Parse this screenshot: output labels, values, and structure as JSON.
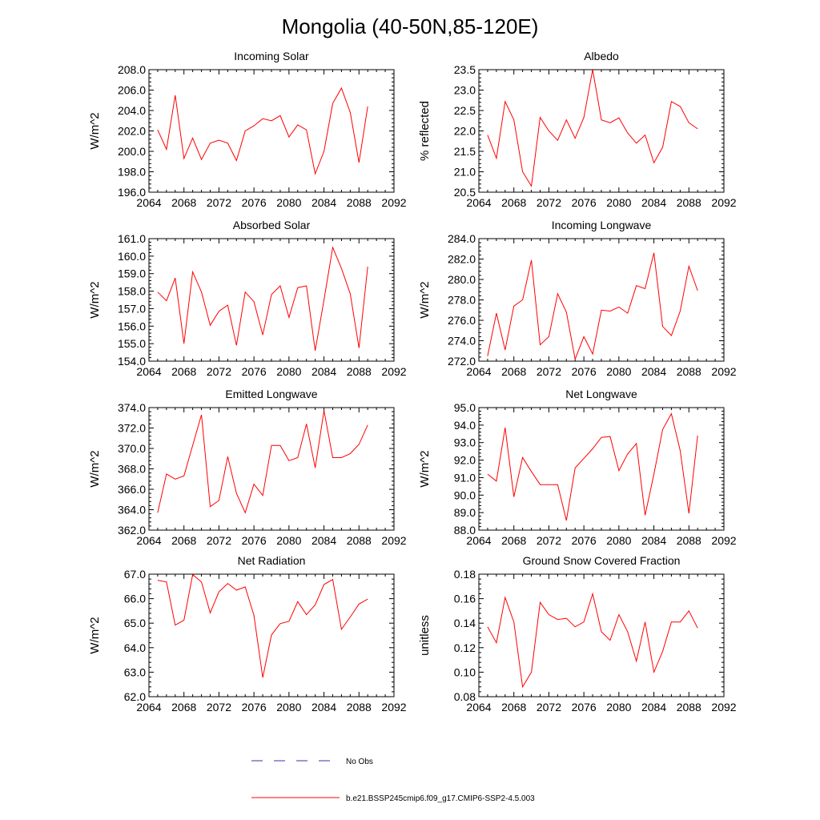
{
  "figure_title": "Mongolia (40-50N,85-120E)",
  "legend": {
    "items": [
      {
        "label": "No Obs",
        "color": "#3333aa",
        "style": "dashed"
      },
      {
        "label": "b.e21.BSSP245cmip6.f09_g17.CMIP6-SSP2-4.5.003",
        "color": "#ff0000",
        "style": "solid"
      }
    ]
  },
  "colors": {
    "series": "#ff0000",
    "axis": "#000000"
  },
  "chart_data": [
    {
      "type": "line",
      "title": "Incoming Solar",
      "ylabel": "W/m^2",
      "xlim": [
        2064,
        2092
      ],
      "ylim": [
        196,
        208
      ],
      "ytick_step": 2,
      "ydecimals": 1,
      "x": [
        2065,
        2066,
        2067,
        2068,
        2069,
        2070,
        2071,
        2072,
        2073,
        2074,
        2075,
        2076,
        2077,
        2078,
        2079,
        2080,
        2081,
        2082,
        2083,
        2084,
        2085,
        2086,
        2087,
        2088,
        2089
      ],
      "series": [
        {
          "name": "b.e21.BSSP245cmip6.f09_g17.CMIP6-SSP2-4.5.003",
          "values": [
            202.1,
            200.2,
            205.5,
            199.3,
            201.3,
            199.2,
            200.8,
            201.1,
            200.8,
            199.1,
            202.0,
            202.5,
            203.2,
            203.0,
            203.5,
            201.4,
            202.6,
            202.1,
            197.8,
            200.0,
            204.7,
            206.2,
            203.8,
            198.9,
            204.4
          ]
        }
      ]
    },
    {
      "type": "line",
      "title": "Albedo",
      "ylabel": "% reflected",
      "xlim": [
        2064,
        2092
      ],
      "ylim": [
        20.5,
        23.5
      ],
      "ytick_step": 0.5,
      "ydecimals": 1,
      "x": [
        2065,
        2066,
        2067,
        2068,
        2069,
        2070,
        2071,
        2072,
        2073,
        2074,
        2075,
        2076,
        2077,
        2078,
        2079,
        2080,
        2081,
        2082,
        2083,
        2084,
        2085,
        2086,
        2087,
        2088,
        2089
      ],
      "series": [
        {
          "name": "b.e21.BSSP245cmip6.f09_g17.CMIP6-SSP2-4.5.003",
          "values": [
            21.9,
            21.33,
            22.72,
            22.27,
            21.0,
            20.65,
            22.33,
            22.0,
            21.77,
            22.27,
            21.82,
            22.33,
            23.5,
            22.27,
            22.2,
            22.32,
            21.95,
            21.7,
            21.9,
            21.22,
            21.6,
            22.72,
            22.6,
            22.2,
            22.05
          ]
        }
      ]
    },
    {
      "type": "line",
      "title": "Absorbed Solar",
      "ylabel": "W/m^2",
      "xlim": [
        2064,
        2092
      ],
      "ylim": [
        154,
        161
      ],
      "ytick_step": 1,
      "ydecimals": 1,
      "x": [
        2065,
        2066,
        2067,
        2068,
        2069,
        2070,
        2071,
        2072,
        2073,
        2074,
        2075,
        2076,
        2077,
        2078,
        2079,
        2080,
        2081,
        2082,
        2083,
        2084,
        2085,
        2086,
        2087,
        2088,
        2089
      ],
      "series": [
        {
          "name": "b.e21.BSSP245cmip6.f09_g17.CMIP6-SSP2-4.5.003",
          "values": [
            157.95,
            157.45,
            158.75,
            155.0,
            159.1,
            157.95,
            156.05,
            156.85,
            157.2,
            154.9,
            157.95,
            157.4,
            155.5,
            157.8,
            158.3,
            156.5,
            158.2,
            158.3,
            154.6,
            157.5,
            160.5,
            159.3,
            157.85,
            154.75,
            159.4
          ]
        }
      ]
    },
    {
      "type": "line",
      "title": "Incoming Longwave",
      "ylabel": "W/m^2",
      "xlim": [
        2064,
        2092
      ],
      "ylim": [
        272,
        284
      ],
      "ytick_step": 2,
      "ydecimals": 1,
      "x": [
        2065,
        2066,
        2067,
        2068,
        2069,
        2070,
        2071,
        2072,
        2073,
        2074,
        2075,
        2076,
        2077,
        2078,
        2079,
        2080,
        2081,
        2082,
        2083,
        2084,
        2085,
        2086,
        2087,
        2088,
        2089
      ],
      "series": [
        {
          "name": "b.e21.BSSP245cmip6.f09_g17.CMIP6-SSP2-4.5.003",
          "values": [
            272.5,
            276.7,
            273.1,
            277.4,
            278.0,
            281.9,
            273.6,
            274.4,
            278.6,
            276.8,
            272.2,
            274.4,
            272.7,
            277.0,
            276.9,
            277.3,
            276.7,
            279.4,
            279.1,
            282.6,
            275.4,
            274.5,
            276.9,
            281.3,
            278.9
          ]
        }
      ]
    },
    {
      "type": "line",
      "title": "Emitted Longwave",
      "ylabel": "W/m^2",
      "xlim": [
        2064,
        2092
      ],
      "ylim": [
        362,
        374
      ],
      "ytick_step": 2,
      "ydecimals": 1,
      "x": [
        2065,
        2066,
        2067,
        2068,
        2069,
        2070,
        2071,
        2072,
        2073,
        2074,
        2075,
        2076,
        2077,
        2078,
        2079,
        2080,
        2081,
        2082,
        2083,
        2084,
        2085,
        2086,
        2087,
        2088,
        2089
      ],
      "series": [
        {
          "name": "b.e21.BSSP245cmip6.f09_g17.CMIP6-SSP2-4.5.003",
          "values": [
            363.7,
            367.5,
            367.0,
            367.3,
            370.3,
            373.3,
            364.3,
            364.9,
            369.2,
            365.6,
            363.7,
            366.5,
            365.4,
            370.3,
            370.3,
            368.8,
            369.1,
            372.4,
            368.1,
            373.7,
            369.1,
            369.1,
            369.5,
            370.4,
            372.3
          ]
        }
      ]
    },
    {
      "type": "line",
      "title": "Net Longwave",
      "ylabel": "W/m^2",
      "xlim": [
        2064,
        2092
      ],
      "ylim": [
        88,
        95
      ],
      "ytick_step": 1,
      "ydecimals": 1,
      "x": [
        2065,
        2066,
        2067,
        2068,
        2069,
        2070,
        2071,
        2072,
        2073,
        2074,
        2075,
        2076,
        2077,
        2078,
        2079,
        2080,
        2081,
        2082,
        2083,
        2084,
        2085,
        2086,
        2087,
        2088,
        2089
      ],
      "series": [
        {
          "name": "b.e21.BSSP245cmip6.f09_g17.CMIP6-SSP2-4.5.003",
          "values": [
            91.2,
            90.8,
            93.85,
            89.9,
            92.15,
            91.35,
            90.6,
            90.6,
            90.6,
            88.55,
            91.55,
            92.1,
            92.65,
            93.3,
            93.35,
            91.4,
            92.35,
            92.95,
            88.85,
            91.2,
            93.75,
            94.65,
            92.55,
            88.95,
            93.4
          ]
        }
      ]
    },
    {
      "type": "line",
      "title": "Net Radiation",
      "ylabel": "W/m^2",
      "xlim": [
        2064,
        2092
      ],
      "ylim": [
        62,
        67
      ],
      "ytick_step": 1,
      "ydecimals": 1,
      "x": [
        2065,
        2066,
        2067,
        2068,
        2069,
        2070,
        2071,
        2072,
        2073,
        2074,
        2075,
        2076,
        2077,
        2078,
        2079,
        2080,
        2081,
        2082,
        2083,
        2084,
        2085,
        2086,
        2087,
        2088,
        2089
      ],
      "series": [
        {
          "name": "b.e21.BSSP245cmip6.f09_g17.CMIP6-SSP2-4.5.003",
          "values": [
            66.75,
            66.68,
            64.92,
            65.12,
            66.98,
            66.68,
            65.42,
            66.28,
            66.62,
            66.35,
            66.48,
            65.32,
            62.78,
            64.52,
            64.98,
            65.08,
            65.88,
            65.35,
            65.75,
            66.58,
            66.78,
            64.75,
            65.25,
            65.78,
            65.98
          ]
        }
      ]
    },
    {
      "type": "line",
      "title": "Ground Snow Covered Fraction",
      "ylabel": "unitless",
      "xlim": [
        2064,
        2092
      ],
      "ylim": [
        0.08,
        0.18
      ],
      "ytick_step": 0.02,
      "ydecimals": 2,
      "x": [
        2065,
        2066,
        2067,
        2068,
        2069,
        2070,
        2071,
        2072,
        2073,
        2074,
        2075,
        2076,
        2077,
        2078,
        2079,
        2080,
        2081,
        2082,
        2083,
        2084,
        2085,
        2086,
        2087,
        2088,
        2089
      ],
      "series": [
        {
          "name": "b.e21.BSSP245cmip6.f09_g17.CMIP6-SSP2-4.5.003",
          "values": [
            0.137,
            0.124,
            0.161,
            0.141,
            0.088,
            0.1,
            0.157,
            0.147,
            0.143,
            0.144,
            0.137,
            0.141,
            0.164,
            0.133,
            0.126,
            0.147,
            0.133,
            0.109,
            0.141,
            0.1,
            0.117,
            0.141,
            0.141,
            0.15,
            0.136
          ]
        }
      ]
    }
  ]
}
